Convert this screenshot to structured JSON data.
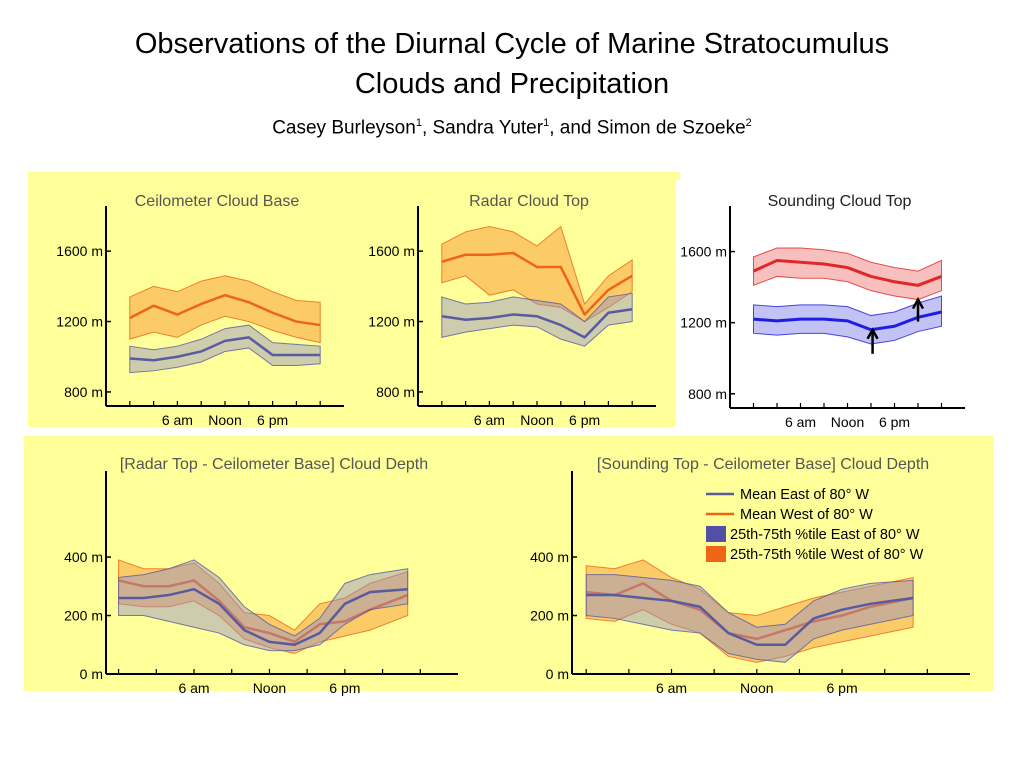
{
  "title_line1": "Observations of the Diurnal Cycle of Marine Stratocumulus",
  "title_line2": "Clouds and Precipitation",
  "authors": [
    {
      "name": "Casey Burleyson",
      "affil": "1",
      "sep": ", "
    },
    {
      "name": "Sandra Yuter",
      "affil": "1",
      "sep": ",  and "
    },
    {
      "name": "Simon de Szoeke",
      "affil": "2",
      "sep": ""
    }
  ],
  "colors": {
    "panel_bg": "#ffff99",
    "east_line": "#5a5aa0",
    "west_line": "#f06418",
    "east_fill": "#9090c8",
    "west_fill": "#f8a040",
    "sounding_east": "#1e1ee0",
    "sounding_west": "#e02828"
  },
  "legend": {
    "items": [
      {
        "label": "Mean East of 80° W",
        "kind": "line",
        "color": "#5a5aa0"
      },
      {
        "label": "Mean West of 80° W",
        "kind": "line",
        "color": "#f06418"
      },
      {
        "label": "25th-75th %tile East of 80° W",
        "kind": "box",
        "color": "#5050a8"
      },
      {
        "label": "25th-75th %tile West of 80° W",
        "kind": "box",
        "color": "#f06418"
      }
    ]
  },
  "chart_data": [
    {
      "type": "area",
      "title": "Ceilometer Cloud Base",
      "x": [
        0,
        3,
        6,
        9,
        12,
        15,
        18,
        21,
        24
      ],
      "xticks": [
        6,
        12,
        18
      ],
      "xtick_labels": [
        "6 am",
        "Noon",
        "6 pm"
      ],
      "xlim": [
        -3,
        27
      ],
      "ylim": [
        720,
        1800
      ],
      "yticks": [
        800,
        1200,
        1600
      ],
      "ytick_labels": [
        "800 m",
        "1200 m",
        "1600 m"
      ],
      "series": [
        {
          "style": "west",
          "mean": [
            1220,
            1290,
            1240,
            1300,
            1350,
            1310,
            1250,
            1200,
            1180
          ],
          "p25": [
            1100,
            1140,
            1110,
            1180,
            1230,
            1200,
            1150,
            1110,
            1080
          ],
          "p75": [
            1340,
            1400,
            1370,
            1430,
            1460,
            1430,
            1370,
            1320,
            1310
          ]
        },
        {
          "style": "east",
          "mean": [
            990,
            980,
            1000,
            1030,
            1090,
            1110,
            1010,
            1010,
            1010
          ],
          "p25": [
            910,
            920,
            940,
            970,
            1030,
            1050,
            950,
            950,
            960
          ],
          "p75": [
            1060,
            1040,
            1060,
            1100,
            1160,
            1180,
            1080,
            1070,
            1060
          ]
        }
      ]
    },
    {
      "type": "area",
      "title": "Radar Cloud Top",
      "x": [
        0,
        3,
        6,
        9,
        12,
        15,
        18,
        21,
        24
      ],
      "xticks": [
        6,
        12,
        18
      ],
      "xtick_labels": [
        "6 am",
        "Noon",
        "6 pm"
      ],
      "xlim": [
        -3,
        27
      ],
      "ylim": [
        720,
        1800
      ],
      "yticks": [
        800,
        1200,
        1600
      ],
      "ytick_labels": [
        "800 m",
        "1200 m",
        "1600 m"
      ],
      "series": [
        {
          "style": "west",
          "mean": [
            1540,
            1580,
            1580,
            1590,
            1510,
            1510,
            1240,
            1380,
            1460
          ],
          "p25": [
            1420,
            1460,
            1350,
            1380,
            1300,
            1280,
            1200,
            1280,
            1370
          ],
          "p75": [
            1640,
            1710,
            1740,
            1710,
            1630,
            1740,
            1300,
            1460,
            1550
          ]
        },
        {
          "style": "east",
          "mean": [
            1230,
            1210,
            1220,
            1240,
            1230,
            1180,
            1110,
            1250,
            1270
          ],
          "p25": [
            1110,
            1140,
            1160,
            1180,
            1170,
            1100,
            1060,
            1180,
            1200
          ],
          "p75": [
            1340,
            1300,
            1310,
            1340,
            1320,
            1300,
            1200,
            1340,
            1360
          ]
        }
      ]
    },
    {
      "type": "area",
      "title": "Sounding Cloud Top",
      "x": [
        0,
        3,
        6,
        9,
        12,
        15,
        18,
        21,
        24
      ],
      "xticks": [
        6,
        12,
        18
      ],
      "xtick_labels": [
        "6 am",
        "Noon",
        "6 pm"
      ],
      "xlim": [
        -3,
        27
      ],
      "ylim": [
        720,
        1800
      ],
      "yticks": [
        800,
        1200,
        1600
      ],
      "ytick_labels": [
        "800 m",
        "1200 m",
        "1600 m"
      ],
      "annotations": [
        "arrow at west series minimum",
        "arrow at east series minimum"
      ],
      "series": [
        {
          "style": "sounding_west",
          "mean": [
            1490,
            1550,
            1540,
            1530,
            1510,
            1460,
            1430,
            1410,
            1460
          ],
          "p25": [
            1410,
            1460,
            1450,
            1450,
            1430,
            1380,
            1350,
            1330,
            1380
          ],
          "p75": [
            1570,
            1620,
            1620,
            1610,
            1590,
            1540,
            1510,
            1490,
            1550
          ]
        },
        {
          "style": "sounding_east",
          "mean": [
            1220,
            1210,
            1220,
            1220,
            1210,
            1160,
            1180,
            1230,
            1260
          ],
          "p25": [
            1140,
            1130,
            1140,
            1140,
            1120,
            1080,
            1100,
            1150,
            1180
          ],
          "p75": [
            1300,
            1290,
            1300,
            1300,
            1290,
            1240,
            1260,
            1310,
            1350
          ]
        }
      ]
    },
    {
      "type": "area",
      "title": "[Radar Top - Ceilometer Base] Cloud Depth",
      "x": [
        0,
        3,
        6,
        9,
        12,
        15,
        18,
        21,
        24
      ],
      "xticks": [
        6,
        12,
        18
      ],
      "xtick_labels": [
        "6 am",
        "Noon",
        "6 pm"
      ],
      "xlim": [
        -1,
        27
      ],
      "ylim": [
        0,
        660
      ],
      "yticks": [
        0,
        200,
        400
      ],
      "ytick_labels": [
        "0 m",
        "200 m",
        "400 m"
      ],
      "series": [
        {
          "style": "west",
          "mean": [
            320,
            300,
            300,
            320,
            250,
            160,
            140,
            110,
            170,
            180,
            220,
            270
          ],
          "x_override": [
            0,
            2,
            4,
            6,
            8,
            10,
            12,
            14,
            16,
            18,
            20,
            23
          ],
          "p25": [
            240,
            230,
            230,
            250,
            200,
            120,
            90,
            70,
            110,
            130,
            150,
            200
          ],
          "p75": [
            390,
            360,
            360,
            380,
            310,
            210,
            200,
            150,
            240,
            260,
            310,
            350
          ]
        },
        {
          "style": "east",
          "mean": [
            260,
            260,
            270,
            290,
            240,
            150,
            110,
            100,
            140,
            240,
            280,
            290
          ],
          "x_override": [
            0,
            2,
            4,
            6,
            8,
            10,
            12,
            14,
            16,
            18,
            20,
            23
          ],
          "p25": [
            200,
            200,
            180,
            160,
            140,
            100,
            80,
            80,
            100,
            170,
            220,
            240
          ],
          "p75": [
            330,
            340,
            360,
            390,
            330,
            230,
            170,
            130,
            190,
            310,
            340,
            360
          ]
        }
      ]
    },
    {
      "type": "area",
      "title": "[Sounding Top - Ceilometer Base] Cloud Depth",
      "x": [
        0,
        3,
        6,
        9,
        12,
        15,
        18,
        21,
        24
      ],
      "xticks": [
        6,
        12,
        18
      ],
      "xtick_labels": [
        "6 am",
        "Noon",
        "6 pm"
      ],
      "xlim": [
        -1,
        27
      ],
      "ylim": [
        0,
        660
      ],
      "yticks": [
        0,
        200,
        400
      ],
      "ytick_labels": [
        "0 m",
        "200 m",
        "400 m"
      ],
      "series": [
        {
          "style": "west",
          "mean": [
            280,
            270,
            310,
            250,
            220,
            140,
            120,
            150,
            180,
            200,
            230,
            260
          ],
          "x_override": [
            0,
            2,
            4,
            6,
            8,
            10,
            12,
            14,
            16,
            18,
            20,
            23
          ],
          "p25": [
            190,
            180,
            220,
            170,
            140,
            60,
            40,
            60,
            90,
            110,
            130,
            160
          ],
          "p75": [
            370,
            360,
            390,
            330,
            290,
            210,
            200,
            230,
            260,
            280,
            300,
            330
          ]
        },
        {
          "style": "east",
          "mean": [
            270,
            270,
            260,
            250,
            230,
            140,
            100,
            100,
            190,
            220,
            240,
            260
          ],
          "x_override": [
            0,
            2,
            4,
            6,
            8,
            10,
            12,
            14,
            16,
            18,
            20,
            23
          ],
          "p25": [
            200,
            190,
            170,
            150,
            140,
            70,
            50,
            40,
            120,
            150,
            170,
            200
          ],
          "p75": [
            340,
            340,
            330,
            320,
            300,
            210,
            160,
            170,
            250,
            290,
            310,
            320
          ]
        }
      ]
    }
  ]
}
